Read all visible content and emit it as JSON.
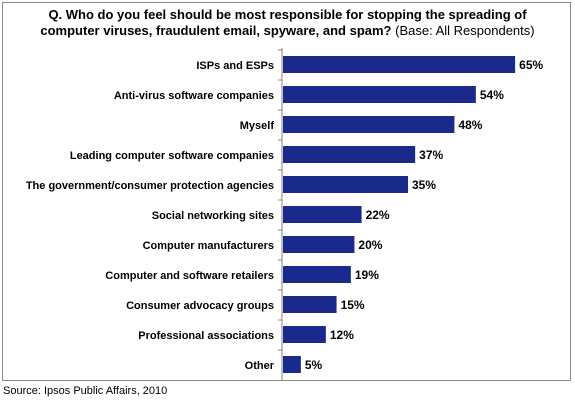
{
  "chart_data": {
    "type": "bar",
    "orientation": "horizontal",
    "title": "Q. Who do you feel should be most responsible for stopping the spreading of computer viruses, fraudulent email, spyware, and spam?",
    "title_line1": "Q. Who do you feel should be most responsible for stopping the spreading of",
    "title_line2": "computer viruses, fraudulent email, spyware, and spam?",
    "subtitle": "(Base: All Respondents)",
    "categories": [
      "ISPs and ESPs",
      "Anti-virus software companies",
      "Myself",
      "Leading computer software companies",
      "The government/consumer protection agencies",
      "Social networking sites",
      "Computer manufacturers",
      "Computer and software retailers",
      "Consumer advocacy groups",
      "Professional associations",
      "Other"
    ],
    "values": [
      65,
      54,
      48,
      37,
      35,
      22,
      20,
      19,
      15,
      12,
      5
    ],
    "value_labels": [
      "65%",
      "54%",
      "48%",
      "37%",
      "35%",
      "22%",
      "20%",
      "19%",
      "15%",
      "12%",
      "5%"
    ],
    "xlim": [
      0,
      70
    ],
    "grid": false,
    "legend": "none",
    "bar_color": "#1a2a8c"
  },
  "source": "Source: Ipsos Public Affairs, 2010"
}
